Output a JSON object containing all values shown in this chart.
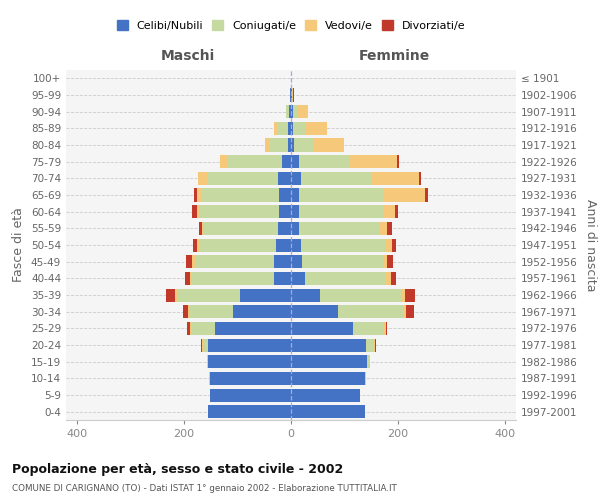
{
  "age_groups": [
    "100+",
    "95-99",
    "90-94",
    "85-89",
    "80-84",
    "75-79",
    "70-74",
    "65-69",
    "60-64",
    "55-59",
    "50-54",
    "45-49",
    "40-44",
    "35-39",
    "30-34",
    "25-29",
    "20-24",
    "15-19",
    "10-14",
    "5-9",
    "0-4"
  ],
  "birth_years": [
    "≤ 1901",
    "1902-1906",
    "1907-1911",
    "1912-1916",
    "1917-1921",
    "1922-1926",
    "1927-1931",
    "1932-1936",
    "1937-1941",
    "1942-1946",
    "1947-1951",
    "1952-1956",
    "1957-1961",
    "1962-1966",
    "1967-1971",
    "1972-1976",
    "1977-1981",
    "1982-1986",
    "1987-1991",
    "1992-1996",
    "1997-2001"
  ],
  "maschi": {
    "celibi": [
      0,
      1,
      4,
      5,
      6,
      17,
      24,
      22,
      22,
      24,
      28,
      32,
      32,
      95,
      108,
      142,
      155,
      155,
      152,
      152,
      155
    ],
    "coniugati": [
      0,
      1,
      6,
      22,
      34,
      100,
      132,
      145,
      148,
      138,
      143,
      148,
      152,
      118,
      82,
      44,
      10,
      2,
      1,
      0,
      0
    ],
    "vedovi": [
      0,
      0,
      0,
      5,
      8,
      16,
      18,
      8,
      6,
      4,
      4,
      4,
      4,
      3,
      3,
      3,
      1,
      0,
      0,
      0,
      0
    ],
    "divorziati": [
      0,
      0,
      0,
      0,
      0,
      0,
      0,
      6,
      8,
      5,
      8,
      12,
      10,
      18,
      8,
      5,
      2,
      0,
      0,
      0,
      0
    ]
  },
  "femmine": {
    "nubili": [
      0,
      1,
      3,
      4,
      5,
      14,
      18,
      14,
      14,
      14,
      18,
      20,
      26,
      55,
      88,
      115,
      140,
      142,
      138,
      128,
      138
    ],
    "coniugate": [
      0,
      1,
      8,
      22,
      38,
      95,
      132,
      158,
      158,
      152,
      158,
      152,
      152,
      152,
      122,
      58,
      15,
      4,
      2,
      1,
      0
    ],
    "vedove": [
      0,
      2,
      20,
      42,
      55,
      88,
      88,
      78,
      22,
      14,
      12,
      8,
      8,
      5,
      5,
      4,
      2,
      1,
      0,
      0,
      0
    ],
    "divorziate": [
      0,
      1,
      1,
      0,
      0,
      4,
      4,
      5,
      5,
      8,
      8,
      10,
      10,
      20,
      14,
      3,
      1,
      0,
      0,
      0,
      0
    ]
  },
  "colors": {
    "celibi": "#4472c4",
    "coniugati": "#c5d9a0",
    "vedovi": "#f5c87a",
    "divorziati": "#c0392b"
  },
  "title": "Popolazione per età, sesso e stato civile - 2002",
  "subtitle": "COMUNE DI CARIGNANO (TO) - Dati ISTAT 1° gennaio 2002 - Elaborazione TUTTITALIA.IT",
  "xlabel_left": "Maschi",
  "xlabel_right": "Femmine",
  "ylabel_left": "Fasce di età",
  "ylabel_right": "Anni di nascita",
  "xlim": 420,
  "legend_labels": [
    "Celibi/Nubili",
    "Coniugati/e",
    "Vedovi/e",
    "Divorziati/e"
  ]
}
